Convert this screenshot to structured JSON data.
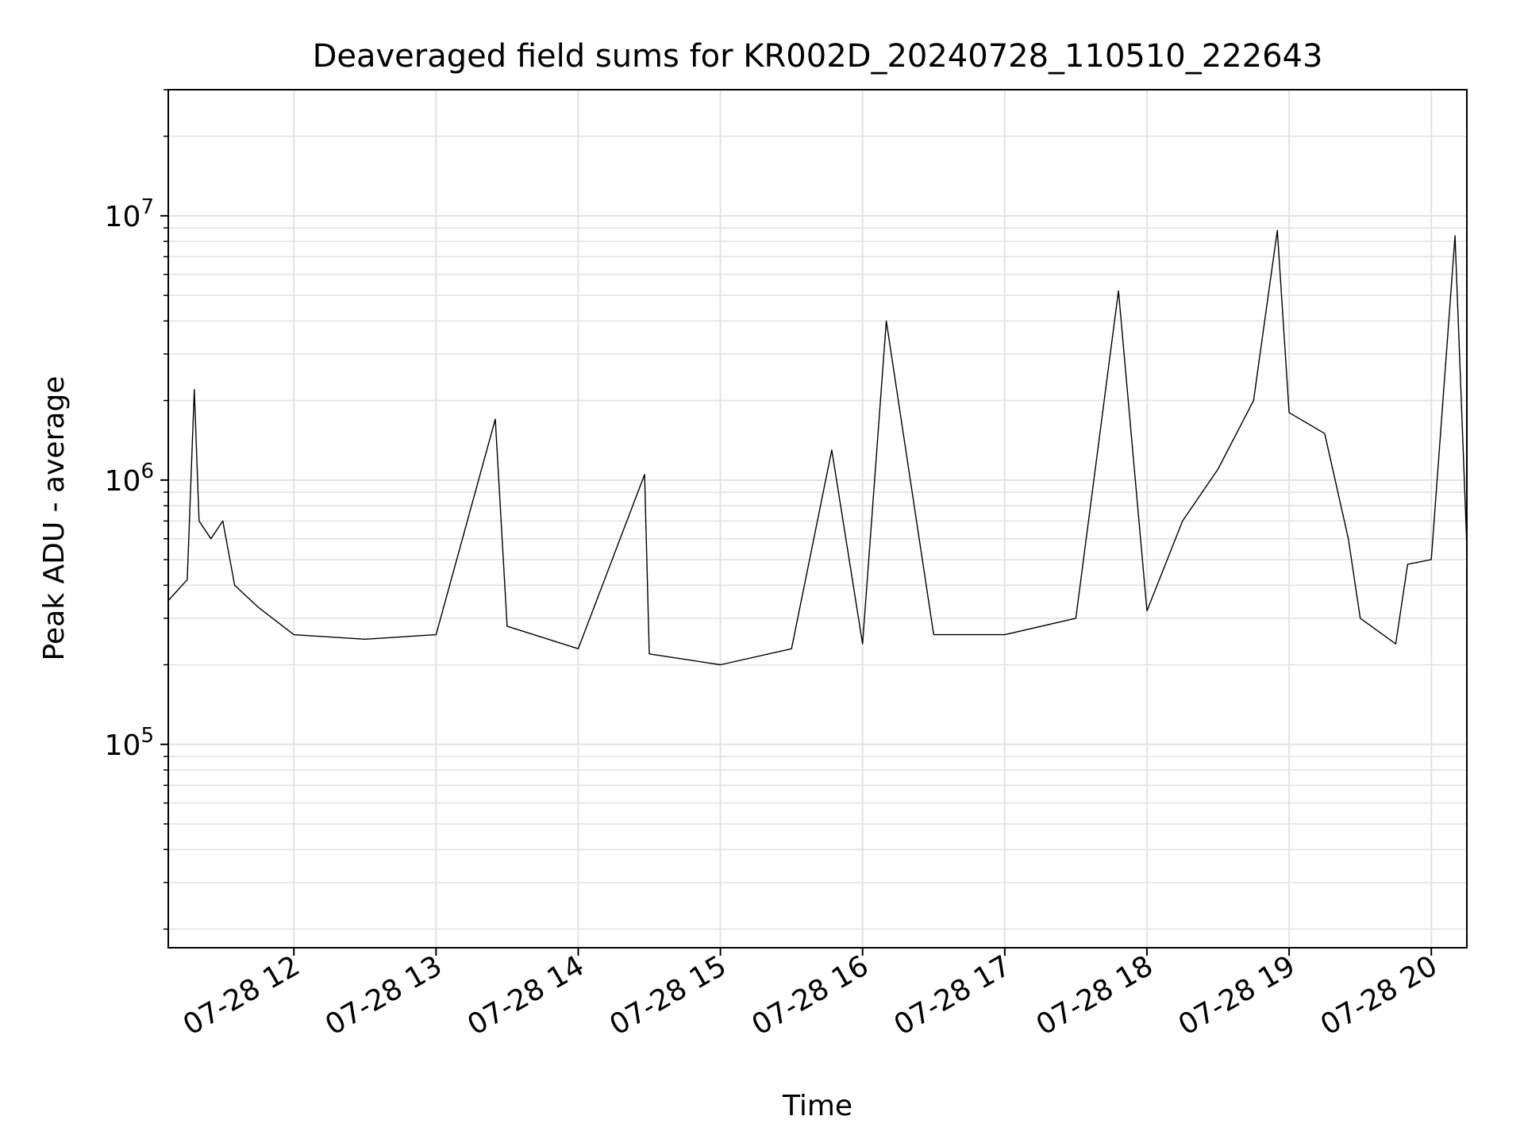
{
  "chart_data": {
    "type": "line",
    "title": "Deaveraged field sums for KR002D_20240728_110510_222643",
    "xlabel": "Time",
    "ylabel": "Peak ADU - average",
    "yscale": "log",
    "ylim": [
      17000,
      30000000
    ],
    "xlim": [
      "2024-07-28 11:07",
      "2024-07-28 20:15"
    ],
    "x_ticks": [
      {
        "at": "2024-07-28 12:00",
        "label": "07-28 12"
      },
      {
        "at": "2024-07-28 13:00",
        "label": "07-28 13"
      },
      {
        "at": "2024-07-28 14:00",
        "label": "07-28 14"
      },
      {
        "at": "2024-07-28 15:00",
        "label": "07-28 15"
      },
      {
        "at": "2024-07-28 16:00",
        "label": "07-28 16"
      },
      {
        "at": "2024-07-28 17:00",
        "label": "07-28 17"
      },
      {
        "at": "2024-07-28 18:00",
        "label": "07-28 18"
      },
      {
        "at": "2024-07-28 19:00",
        "label": "07-28 19"
      },
      {
        "at": "2024-07-28 20:00",
        "label": "07-28 20"
      }
    ],
    "y_ticks": [
      {
        "value": 100000,
        "base": "10",
        "exp": "5"
      },
      {
        "value": 1000000,
        "base": "10",
        "exp": "6"
      },
      {
        "value": 10000000,
        "base": "10",
        "exp": "7"
      }
    ],
    "grid": true,
    "series_color": "#000000",
    "series": [
      {
        "values": [
          {
            "x": "2024-07-28 11:07",
            "y": 350000
          },
          {
            "x": "2024-07-28 11:15",
            "y": 420000
          },
          {
            "x": "2024-07-28 11:18",
            "y": 2200000
          },
          {
            "x": "2024-07-28 11:20",
            "y": 700000
          },
          {
            "x": "2024-07-28 11:25",
            "y": 600000
          },
          {
            "x": "2024-07-28 11:30",
            "y": 700000
          },
          {
            "x": "2024-07-28 11:35",
            "y": 400000
          },
          {
            "x": "2024-07-28 11:45",
            "y": 330000
          },
          {
            "x": "2024-07-28 12:00",
            "y": 260000
          },
          {
            "x": "2024-07-28 12:30",
            "y": 250000
          },
          {
            "x": "2024-07-28 13:00",
            "y": 260000
          },
          {
            "x": "2024-07-28 13:25",
            "y": 1700000
          },
          {
            "x": "2024-07-28 13:30",
            "y": 280000
          },
          {
            "x": "2024-07-28 14:00",
            "y": 230000
          },
          {
            "x": "2024-07-28 14:28",
            "y": 1050000
          },
          {
            "x": "2024-07-28 14:30",
            "y": 220000
          },
          {
            "x": "2024-07-28 15:00",
            "y": 200000
          },
          {
            "x": "2024-07-28 15:30",
            "y": 230000
          },
          {
            "x": "2024-07-28 15:47",
            "y": 1300000
          },
          {
            "x": "2024-07-28 16:00",
            "y": 240000
          },
          {
            "x": "2024-07-28 16:10",
            "y": 4000000
          },
          {
            "x": "2024-07-28 16:30",
            "y": 260000
          },
          {
            "x": "2024-07-28 17:00",
            "y": 260000
          },
          {
            "x": "2024-07-28 17:30",
            "y": 300000
          },
          {
            "x": "2024-07-28 17:48",
            "y": 5200000
          },
          {
            "x": "2024-07-28 18:00",
            "y": 320000
          },
          {
            "x": "2024-07-28 18:15",
            "y": 700000
          },
          {
            "x": "2024-07-28 18:30",
            "y": 1100000
          },
          {
            "x": "2024-07-28 18:45",
            "y": 2000000
          },
          {
            "x": "2024-07-28 18:55",
            "y": 8800000
          },
          {
            "x": "2024-07-28 19:00",
            "y": 1800000
          },
          {
            "x": "2024-07-28 19:15",
            "y": 1500000
          },
          {
            "x": "2024-07-28 19:25",
            "y": 600000
          },
          {
            "x": "2024-07-28 19:30",
            "y": 300000
          },
          {
            "x": "2024-07-28 19:45",
            "y": 240000
          },
          {
            "x": "2024-07-28 19:50",
            "y": 480000
          },
          {
            "x": "2024-07-28 20:00",
            "y": 500000
          },
          {
            "x": "2024-07-28 20:10",
            "y": 8400000
          },
          {
            "x": "2024-07-28 20:15",
            "y": 560000
          }
        ]
      }
    ]
  }
}
